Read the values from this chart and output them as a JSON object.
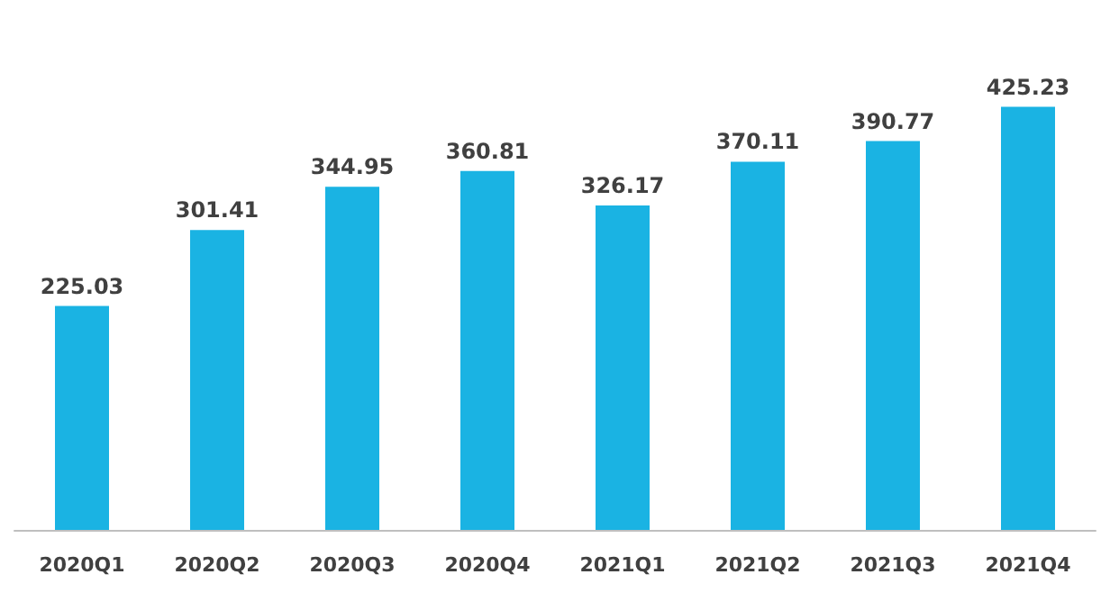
{
  "chart_data": {
    "type": "bar",
    "categories": [
      "2020Q1",
      "2020Q2",
      "2020Q3",
      "2020Q4",
      "2021Q1",
      "2021Q2",
      "2021Q3",
      "2021Q4"
    ],
    "values": [
      225.03,
      301.41,
      344.95,
      360.81,
      326.17,
      370.11,
      390.77,
      425.23
    ],
    "color": "#1ab3e3",
    "data_labels": true
  }
}
